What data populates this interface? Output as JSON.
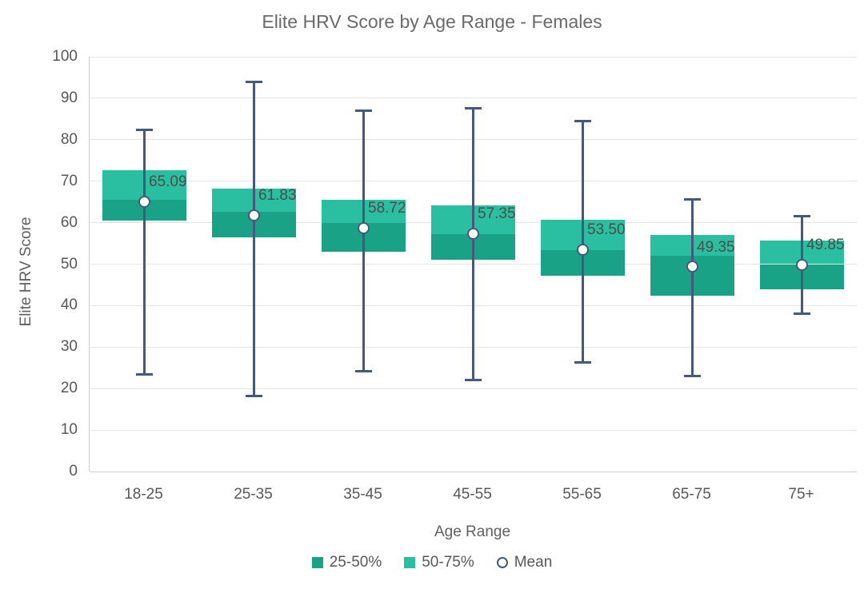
{
  "title": "Elite HRV Score by Age Range - Females",
  "legend": {
    "items": [
      {
        "label": "25-50%",
        "swatch": "square-dark"
      },
      {
        "label": "50-75%",
        "swatch": "square-light"
      },
      {
        "label": "Mean",
        "swatch": "open-circle"
      }
    ]
  },
  "colors": {
    "box_dark": "#1aa286",
    "box_light": "#2abfa0",
    "whisker": "#45597a",
    "grid_line": "#e4e4e4",
    "axis_line": "#cfcfcf",
    "title_text": "#6a6a6a",
    "tick_text": "#58585a",
    "value_label_text": "#4c4c4c"
  },
  "chart_data": {
    "type": "box",
    "title": "Elite HRV Score by Age Range - Females",
    "xlabel": "Age Range",
    "ylabel": "Elite HRV Score",
    "ylim": [
      0,
      100
    ],
    "y_ticks": [
      0,
      10,
      20,
      30,
      40,
      50,
      60,
      70,
      80,
      90,
      100
    ],
    "grid": true,
    "legend_position": "bottom",
    "legend_entries": [
      "25-50%",
      "50-75%",
      "Mean"
    ],
    "categories": [
      "18-25",
      "25-35",
      "35-45",
      "45-55",
      "55-65",
      "65-75",
      "75+"
    ],
    "boxes": [
      {
        "category": "18-25",
        "min": 23.4,
        "q1": 60.5,
        "median": 65.6,
        "q3": 72.7,
        "max": 82.4,
        "mean": 65.09,
        "mean_label": "65.09"
      },
      {
        "category": "25-35",
        "min": 18.2,
        "q1": 56.5,
        "median": 62.7,
        "q3": 68.3,
        "max": 93.9,
        "mean": 61.83,
        "mean_label": "61.83"
      },
      {
        "category": "35-45",
        "min": 24.2,
        "q1": 53.0,
        "median": 59.9,
        "q3": 65.5,
        "max": 86.9,
        "mean": 58.72,
        "mean_label": "58.72"
      },
      {
        "category": "45-55",
        "min": 22.1,
        "q1": 51.1,
        "median": 57.3,
        "q3": 64.2,
        "max": 87.5,
        "mean": 57.35,
        "mean_label": "57.35"
      },
      {
        "category": "55-65",
        "min": 26.3,
        "q1": 47.2,
        "median": 53.3,
        "q3": 60.6,
        "max": 84.5,
        "mean": 53.5,
        "mean_label": "53.50"
      },
      {
        "category": "65-75",
        "min": 23.0,
        "q1": 42.3,
        "median": 52.1,
        "q3": 57.0,
        "max": 65.6,
        "mean": 49.35,
        "mean_label": "49.35"
      },
      {
        "category": "75+",
        "min": 38.0,
        "q1": 43.9,
        "median": 50.0,
        "q3": 55.7,
        "max": 61.5,
        "mean": 49.85,
        "mean_label": "49.85"
      }
    ]
  }
}
